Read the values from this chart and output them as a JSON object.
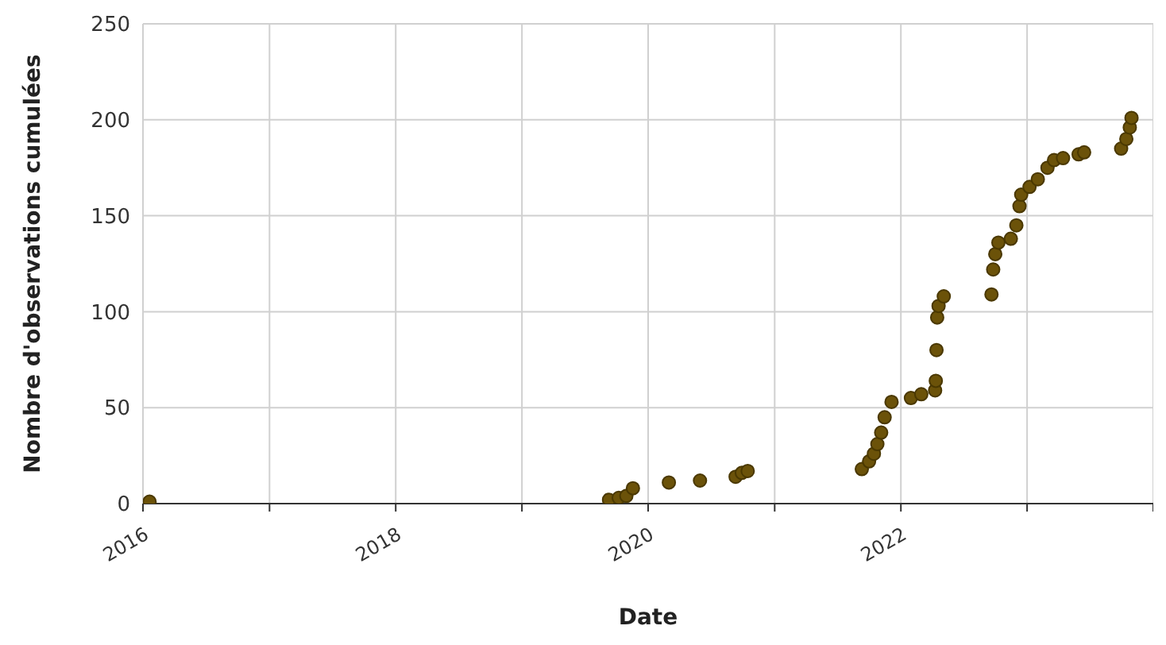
{
  "chart_data": {
    "type": "scatter",
    "xlabel": "Date",
    "ylabel": "Nombre d'observations cumulées",
    "x": [
      "2016-01-20",
      "2019-09-10",
      "2019-10-08",
      "2019-10-30",
      "2019-11-18",
      "2020-03-01",
      "2020-05-30",
      "2020-09-10",
      "2020-09-28",
      "2020-10-15",
      "2021-09-10",
      "2021-10-01",
      "2021-10-15",
      "2021-10-25",
      "2021-11-05",
      "2021-11-15",
      "2021-12-05",
      "2022-01-30",
      "2022-03-01",
      "2022-04-10",
      "2022-04-12",
      "2022-04-14",
      "2022-04-16",
      "2022-04-20",
      "2022-05-05",
      "2022-09-20",
      "2022-09-25",
      "2022-10-01",
      "2022-10-10",
      "2022-11-15",
      "2022-12-01",
      "2022-12-10",
      "2022-12-15",
      "2023-01-08",
      "2023-02-01",
      "2023-03-01",
      "2023-03-20",
      "2023-04-15",
      "2023-05-30",
      "2023-06-15",
      "2023-09-30",
      "2023-10-15",
      "2023-10-25",
      "2023-10-30"
    ],
    "series": [
      {
        "color": "#6b5209",
        "values": [
          1,
          2,
          3,
          4,
          8,
          11,
          12,
          14,
          16,
          17,
          18,
          22,
          26,
          31,
          37,
          45,
          53,
          55,
          57,
          59,
          64,
          80,
          97,
          103,
          108,
          109,
          122,
          130,
          136,
          138,
          145,
          155,
          161,
          165,
          169,
          175,
          179,
          180,
          182,
          183,
          185,
          190,
          196,
          201
        ]
      }
    ],
    "xlim": [
      "2016-01-01",
      "2024-01-01"
    ],
    "xticks": [
      {
        "value": "2016",
        "label": "2016"
      },
      {
        "value": "2017",
        "label": null
      },
      {
        "value": "2018",
        "label": "2018"
      },
      {
        "value": "2019",
        "label": null
      },
      {
        "value": "2020",
        "label": "2020"
      },
      {
        "value": "2021",
        "label": null
      },
      {
        "value": "2022",
        "label": "2022"
      },
      {
        "value": "2023",
        "label": null
      },
      {
        "value": "2024",
        "label": null
      }
    ],
    "ylim": [
      0,
      250
    ],
    "yticks": [
      0,
      50,
      100,
      150,
      200,
      250
    ],
    "grid": true,
    "legend": false,
    "marker": "circle"
  }
}
